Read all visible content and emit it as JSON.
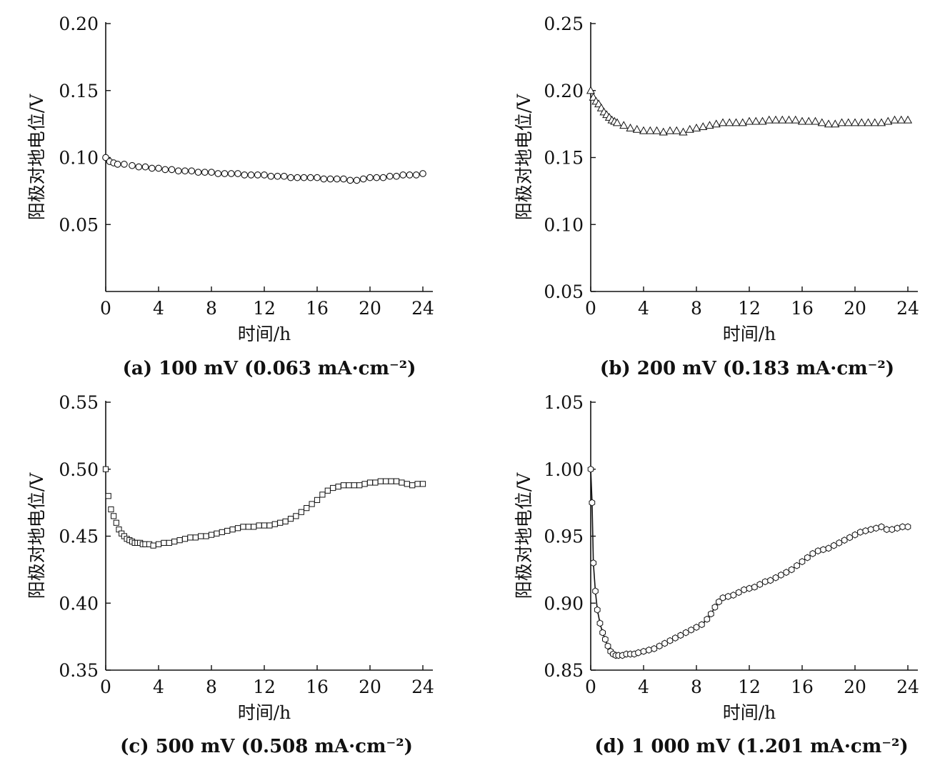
{
  "figure": {
    "panels": [
      {
        "caption": "(a) 100 mV (0.063 mA·cm⁻²)"
      },
      {
        "caption": "(b) 200 mV (0.183 mA·cm⁻²)"
      },
      {
        "caption": "(c) 500 mV (0.508 mA·cm⁻²)"
      },
      {
        "caption": "(d) 1 000 mV (1.201 mA·cm⁻²)"
      }
    ]
  },
  "chart_data": [
    {
      "type": "scatter",
      "panel": "a",
      "marker": "circle",
      "xlabel": "时间/h",
      "ylabel": "阳极对地电位/V",
      "xlim": [
        0,
        24
      ],
      "ylim": [
        0,
        0.2
      ],
      "xticks": [
        "0",
        "4",
        "8",
        "12",
        "16",
        "20",
        "24"
      ],
      "yticks": [
        "0.05",
        "0.10",
        "0.15",
        "0.20"
      ],
      "series": [
        {
          "x": [
            0,
            0.3,
            0.6,
            0.9,
            1.4,
            2,
            2.5,
            3,
            3.5,
            4,
            4.5,
            5,
            5.5,
            6,
            6.5,
            7,
            7.5,
            8,
            8.5,
            9,
            9.5,
            10,
            10.5,
            11,
            11.5,
            12,
            12.5,
            13,
            13.5,
            14,
            14.5,
            15,
            15.5,
            16,
            16.5,
            17,
            17.5,
            18,
            18.5,
            19,
            19.5,
            20,
            20.5,
            21,
            21.5,
            22,
            22.5,
            23,
            23.5,
            24
          ],
          "y": [
            0.1,
            0.097,
            0.096,
            0.095,
            0.095,
            0.094,
            0.093,
            0.093,
            0.092,
            0.092,
            0.091,
            0.091,
            0.09,
            0.09,
            0.09,
            0.089,
            0.089,
            0.089,
            0.088,
            0.088,
            0.088,
            0.088,
            0.087,
            0.087,
            0.087,
            0.087,
            0.086,
            0.086,
            0.086,
            0.085,
            0.085,
            0.085,
            0.085,
            0.085,
            0.084,
            0.084,
            0.084,
            0.084,
            0.083,
            0.083,
            0.084,
            0.085,
            0.085,
            0.085,
            0.086,
            0.086,
            0.087,
            0.087,
            0.087,
            0.088
          ]
        }
      ]
    },
    {
      "type": "scatter",
      "panel": "b",
      "marker": "triangle",
      "xlabel": "时间/h",
      "ylabel": "阳极对地电位/V",
      "xlim": [
        0,
        24
      ],
      "ylim": [
        0.05,
        0.25
      ],
      "xticks": [
        "0",
        "4",
        "8",
        "12",
        "16",
        "20",
        "24"
      ],
      "yticks": [
        "0.05",
        "0.10",
        "0.15",
        "0.20",
        "0.25"
      ],
      "series": [
        {
          "x": [
            0,
            0.2,
            0.4,
            0.6,
            0.8,
            1,
            1.2,
            1.4,
            1.6,
            1.8,
            2,
            2.5,
            3,
            3.5,
            4,
            4.5,
            5,
            5.5,
            6,
            6.5,
            7,
            7.5,
            8,
            8.5,
            9,
            9.5,
            10,
            10.5,
            11,
            11.5,
            12,
            12.5,
            13,
            13.5,
            14,
            14.5,
            15,
            15.5,
            16,
            16.5,
            17,
            17.5,
            18,
            18.5,
            19,
            19.5,
            20,
            20.5,
            21,
            21.5,
            22,
            22.5,
            23,
            23.5,
            24
          ],
          "y": [
            0.2,
            0.195,
            0.192,
            0.19,
            0.187,
            0.184,
            0.182,
            0.18,
            0.178,
            0.177,
            0.176,
            0.174,
            0.172,
            0.171,
            0.17,
            0.17,
            0.17,
            0.169,
            0.17,
            0.17,
            0.169,
            0.171,
            0.172,
            0.173,
            0.174,
            0.175,
            0.176,
            0.176,
            0.176,
            0.176,
            0.177,
            0.177,
            0.177,
            0.178,
            0.178,
            0.178,
            0.178,
            0.178,
            0.177,
            0.177,
            0.177,
            0.176,
            0.175,
            0.175,
            0.176,
            0.176,
            0.176,
            0.176,
            0.176,
            0.176,
            0.176,
            0.177,
            0.178,
            0.178,
            0.178
          ]
        }
      ]
    },
    {
      "type": "scatter",
      "panel": "c",
      "marker": "square",
      "xlabel": "时间/h",
      "ylabel": "阳极对地电位/V",
      "xlim": [
        0,
        24
      ],
      "ylim": [
        0.35,
        0.55
      ],
      "xticks": [
        "0",
        "4",
        "8",
        "12",
        "16",
        "20",
        "24"
      ],
      "yticks": [
        "0.35",
        "0.40",
        "0.45",
        "0.50",
        "0.55"
      ],
      "series": [
        {
          "x": [
            0,
            0.2,
            0.4,
            0.6,
            0.8,
            1,
            1.2,
            1.4,
            1.6,
            1.8,
            2,
            2.2,
            2.4,
            2.6,
            2.8,
            3,
            3.3,
            3.6,
            4,
            4.4,
            4.8,
            5.2,
            5.6,
            6,
            6.4,
            6.8,
            7.2,
            7.6,
            8,
            8.4,
            8.8,
            9.2,
            9.6,
            10,
            10.4,
            10.8,
            11.2,
            11.6,
            12,
            12.4,
            12.8,
            13.2,
            13.6,
            14,
            14.4,
            14.8,
            15.2,
            15.6,
            16,
            16.4,
            16.8,
            17.2,
            17.6,
            18,
            18.4,
            18.8,
            19.2,
            19.6,
            20,
            20.4,
            20.8,
            21.2,
            21.6,
            22,
            22.4,
            22.8,
            23.2,
            23.6,
            24
          ],
          "y": [
            0.5,
            0.48,
            0.47,
            0.465,
            0.46,
            0.455,
            0.452,
            0.45,
            0.448,
            0.447,
            0.446,
            0.445,
            0.445,
            0.445,
            0.444,
            0.444,
            0.444,
            0.443,
            0.444,
            0.445,
            0.445,
            0.446,
            0.447,
            0.448,
            0.449,
            0.449,
            0.45,
            0.45,
            0.451,
            0.452,
            0.453,
            0.454,
            0.455,
            0.456,
            0.457,
            0.457,
            0.457,
            0.458,
            0.458,
            0.458,
            0.459,
            0.46,
            0.461,
            0.463,
            0.465,
            0.468,
            0.471,
            0.474,
            0.477,
            0.481,
            0.484,
            0.486,
            0.487,
            0.488,
            0.488,
            0.488,
            0.488,
            0.489,
            0.49,
            0.49,
            0.491,
            0.491,
            0.491,
            0.491,
            0.49,
            0.489,
            0.488,
            0.489,
            0.489
          ]
        }
      ]
    },
    {
      "type": "line",
      "panel": "d",
      "marker": "hexagon",
      "xlabel": "时间/h",
      "ylabel": "阳极对地电位/V",
      "xlim": [
        0,
        24
      ],
      "ylim": [
        0.85,
        1.05
      ],
      "xticks": [
        "0",
        "4",
        "8",
        "12",
        "16",
        "20",
        "24"
      ],
      "yticks": [
        "0.85",
        "0.90",
        "0.95",
        "1.00",
        "1.05"
      ],
      "series": [
        {
          "x": [
            0,
            0.1,
            0.2,
            0.35,
            0.5,
            0.7,
            0.9,
            1.1,
            1.3,
            1.5,
            1.7,
            1.9,
            2.1,
            2.4,
            2.7,
            3,
            3.3,
            3.6,
            4,
            4.4,
            4.8,
            5.2,
            5.6,
            6,
            6.4,
            6.8,
            7.2,
            7.6,
            8,
            8.4,
            8.8,
            9.1,
            9.4,
            9.7,
            10,
            10.4,
            10.8,
            11.2,
            11.6,
            12,
            12.4,
            12.8,
            13.2,
            13.6,
            14,
            14.4,
            14.8,
            15.2,
            15.6,
            16,
            16.4,
            16.8,
            17.2,
            17.6,
            18,
            18.4,
            18.8,
            19.2,
            19.6,
            20,
            20.4,
            20.8,
            21.2,
            21.6,
            22,
            22.4,
            22.8,
            23.2,
            23.6,
            24
          ],
          "y": [
            1.0,
            0.975,
            0.93,
            0.909,
            0.895,
            0.885,
            0.878,
            0.873,
            0.868,
            0.864,
            0.862,
            0.861,
            0.861,
            0.861,
            0.862,
            0.862,
            0.862,
            0.863,
            0.864,
            0.865,
            0.866,
            0.868,
            0.87,
            0.872,
            0.874,
            0.876,
            0.878,
            0.88,
            0.882,
            0.884,
            0.888,
            0.892,
            0.897,
            0.901,
            0.904,
            0.905,
            0.906,
            0.908,
            0.91,
            0.911,
            0.912,
            0.914,
            0.916,
            0.917,
            0.919,
            0.921,
            0.923,
            0.925,
            0.928,
            0.931,
            0.934,
            0.937,
            0.939,
            0.94,
            0.941,
            0.943,
            0.945,
            0.947,
            0.949,
            0.951,
            0.953,
            0.954,
            0.955,
            0.956,
            0.957,
            0.955,
            0.955,
            0.956,
            0.957,
            0.957
          ]
        }
      ]
    }
  ]
}
